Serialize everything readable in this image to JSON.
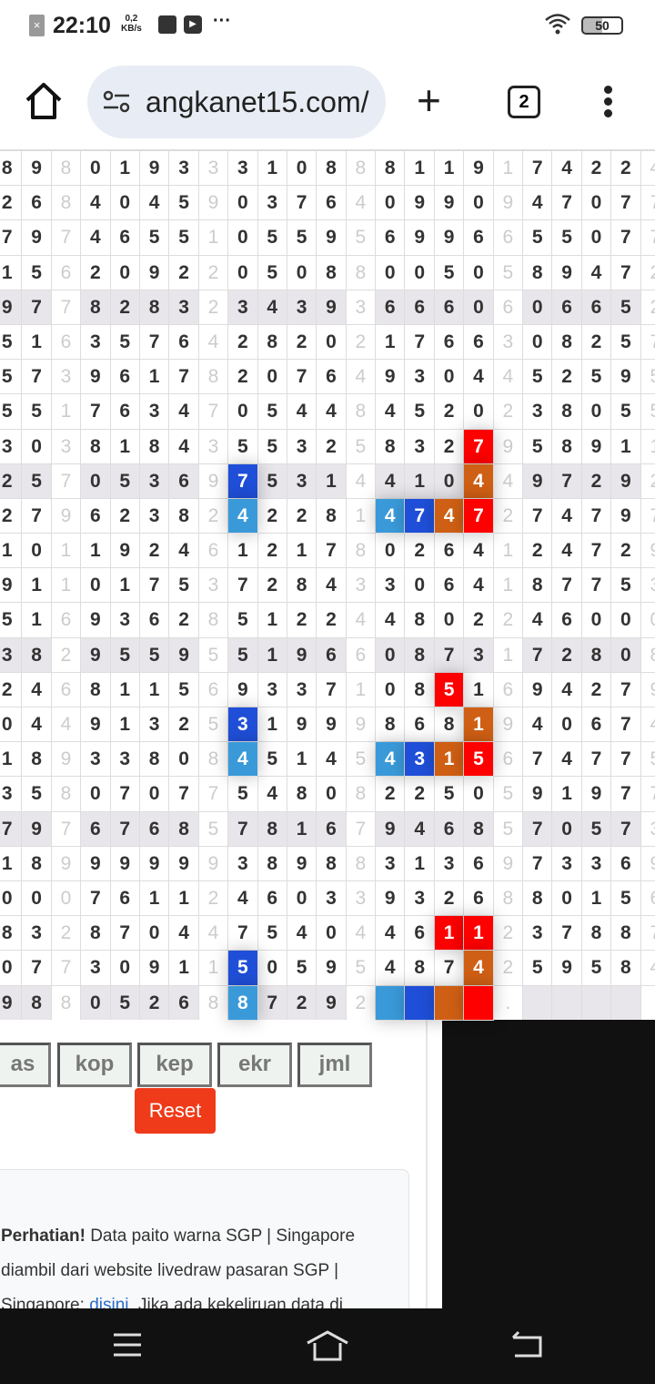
{
  "status_bar": {
    "time": "22:10",
    "speed_value": "0,2",
    "speed_unit": "KB/s",
    "battery": "50",
    "more": "···"
  },
  "browser": {
    "url": "angkanet15.com/",
    "tab_count": "2"
  },
  "paito": {
    "light_columns": [
      2,
      7,
      12,
      17,
      22
    ],
    "shaded_rows": [
      4,
      9,
      14,
      19,
      24
    ],
    "rows": [
      "89801933310888119174224",
      "26840459037640990947077",
      "79746551055956996655077",
      "15620922050880050589472",
      "97782832343936660606652",
      "51635764282021766308257",
      "57396178207649304452595",
      "55176347054484520238055",
      "30381843553258327958911",
      "25705369753144104497292",
      "27962382422814747274797",
      "10119246121780264124729",
      "91101753728433064187753",
      "51693628512244802246000",
      "38295595519660873172808",
      "24681156933710851694279",
      "04491325319998681940674",
      "18933808451454315674775",
      "35807077548082250591977",
      "79767685781679468570573",
      "18999999389883136973369",
      "00076112460339326880156",
      "83287044754044611237887",
      "07730911505954874259584",
      "9880526887292    .     "
    ],
    "colors": {
      "lightblue": "#3a9ad9",
      "blue": "#1f4fd8",
      "orange": "#cf5f14",
      "red": "#ff0000"
    },
    "highlights": [
      {
        "row": 8,
        "col": 16,
        "color": "red"
      },
      {
        "row": 9,
        "col": 8,
        "color": "blue"
      },
      {
        "row": 9,
        "col": 16,
        "color": "orange"
      },
      {
        "row": 10,
        "col": 8,
        "color": "lightblue"
      },
      {
        "row": 10,
        "col": 13,
        "color": "lightblue"
      },
      {
        "row": 10,
        "col": 14,
        "color": "blue"
      },
      {
        "row": 10,
        "col": 15,
        "color": "orange"
      },
      {
        "row": 10,
        "col": 16,
        "color": "red"
      },
      {
        "row": 15,
        "col": 15,
        "color": "red"
      },
      {
        "row": 16,
        "col": 8,
        "color": "blue"
      },
      {
        "row": 16,
        "col": 16,
        "color": "orange"
      },
      {
        "row": 17,
        "col": 8,
        "color": "lightblue"
      },
      {
        "row": 17,
        "col": 13,
        "color": "lightblue"
      },
      {
        "row": 17,
        "col": 14,
        "color": "blue"
      },
      {
        "row": 17,
        "col": 15,
        "color": "orange"
      },
      {
        "row": 17,
        "col": 16,
        "color": "red"
      },
      {
        "row": 22,
        "col": 15,
        "color": "red"
      },
      {
        "row": 22,
        "col": 16,
        "color": "red"
      },
      {
        "row": 23,
        "col": 8,
        "color": "blue"
      },
      {
        "row": 23,
        "col": 16,
        "color": "orange"
      },
      {
        "row": 24,
        "col": 8,
        "color": "lightblue"
      },
      {
        "row": 24,
        "col": 13,
        "color": "lightblue"
      },
      {
        "row": 24,
        "col": 14,
        "color": "blue"
      },
      {
        "row": 24,
        "col": 15,
        "color": "orange"
      },
      {
        "row": 24,
        "col": 16,
        "color": "red"
      }
    ]
  },
  "controls": {
    "buttons": [
      "as",
      "kop",
      "kep",
      "ekr",
      "jml"
    ],
    "reset": "Reset"
  },
  "notice": {
    "bold": "Perhatian!",
    "line1": " Data paito warna SGP | Singapore",
    "line2": "diambil dari website livedraw pasaran SGP |",
    "line3_pre": "Singapore: ",
    "link": "disini",
    "line3_post": ". Jika ada kekeliruan data di"
  }
}
